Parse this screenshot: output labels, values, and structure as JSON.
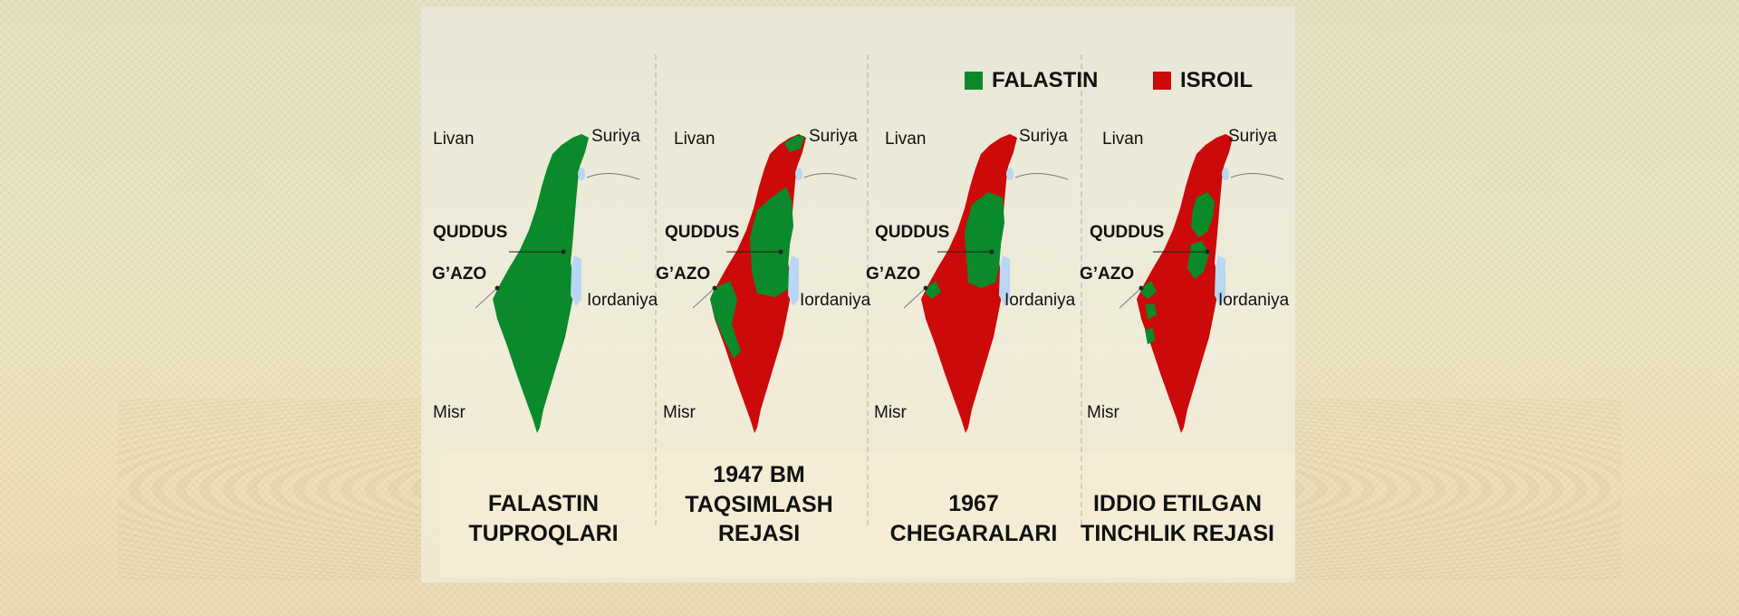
{
  "colors": {
    "palestine": "#0a8a2a",
    "israel": "#cc0a0a",
    "water": "#b9d6f3"
  },
  "legend": {
    "palestine_label": "FALASTIN",
    "israel_label": "ISROIL"
  },
  "maps": [
    {
      "labels": {
        "lebanon": "Livan",
        "syria": "Suriya",
        "jerusalem": "QUDDUS",
        "gaza": "G’AZO",
        "jordan": "Iordaniya",
        "egypt": "Misr"
      },
      "caption": [
        "FALASTIN",
        "TUPROQLARI"
      ]
    },
    {
      "labels": {
        "lebanon": "Livan",
        "syria": "Suriya",
        "jerusalem": "QUDDUS",
        "gaza": "G’AZO",
        "jordan": "Iordaniya",
        "egypt": "Misr"
      },
      "caption": [
        "1947 BM",
        "TAQSIMLASH",
        "REJASI"
      ]
    },
    {
      "labels": {
        "lebanon": "Livan",
        "syria": "Suriya",
        "jerusalem": "QUDDUS",
        "gaza": "G’AZO",
        "jordan": "Iordaniya",
        "egypt": "Misr"
      },
      "caption": [
        "1967",
        "CHEGARALARI"
      ]
    },
    {
      "labels": {
        "lebanon": "Livan",
        "syria": "Suriya",
        "jerusalem": "QUDDUS",
        "gaza": "G’AZO",
        "jordan": "Iordaniya",
        "egypt": "Misr"
      },
      "caption": [
        "IDDIO ETILGAN",
        "TINCHLIK REJASI"
      ]
    }
  ]
}
